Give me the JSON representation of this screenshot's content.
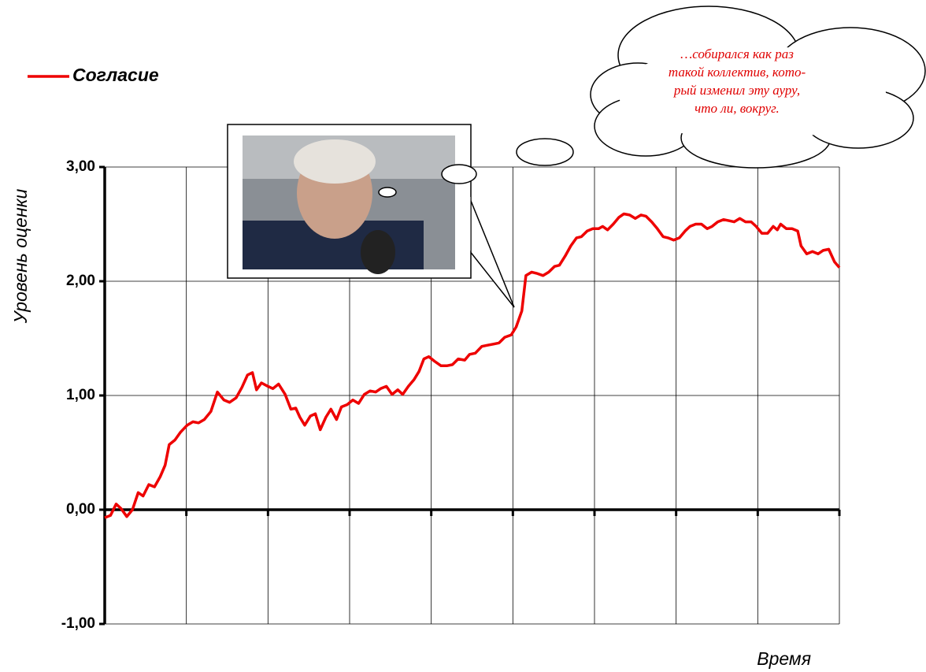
{
  "chart_data": {
    "type": "line",
    "y_axis_label": "Уровень оценки",
    "x_axis_label": "Время",
    "annotation": [
      "…собирался как раз",
      "такой коллектив, кото-",
      "рый изменил эту ауру,",
      "что ли, вокруг."
    ],
    "legend_position": "top-left",
    "grid": true,
    "xlim": [
      0,
      9
    ],
    "xticks": [
      0,
      1,
      2,
      3,
      4,
      5,
      6,
      7,
      8,
      9
    ],
    "ylim": [
      -1,
      3
    ],
    "yticks": [
      {
        "value": -1,
        "label": "-1,00"
      },
      {
        "value": 0,
        "label": "0,00"
      },
      {
        "value": 1,
        "label": "1,00"
      },
      {
        "value": 2,
        "label": "2,00"
      },
      {
        "value": 3,
        "label": "3,00"
      }
    ],
    "x": [
      0,
      0.07,
      0.14,
      0.2,
      0.27,
      0.34,
      0.41,
      0.47,
      0.54,
      0.61,
      0.68,
      0.74,
      0.79,
      0.86,
      0.93,
      1.01,
      1.08,
      1.15,
      1.22,
      1.3,
      1.38,
      1.46,
      1.53,
      1.61,
      1.68,
      1.75,
      1.81,
      1.86,
      1.92,
      2.0,
      2.06,
      2.13,
      2.21,
      2.28,
      2.34,
      2.39,
      2.45,
      2.52,
      2.58,
      2.64,
      2.71,
      2.77,
      2.84,
      2.9,
      2.97,
      3.04,
      3.11,
      3.18,
      3.25,
      3.32,
      3.38,
      3.45,
      3.52,
      3.59,
      3.65,
      3.72,
      3.79,
      3.85,
      3.91,
      3.97,
      4.04,
      4.12,
      4.19,
      4.26,
      4.33,
      4.41,
      4.47,
      4.54,
      4.62,
      4.69,
      4.76,
      4.83,
      4.9,
      4.98,
      5.04,
      5.11,
      5.16,
      5.23,
      5.29,
      5.37,
      5.44,
      5.51,
      5.57,
      5.64,
      5.71,
      5.78,
      5.84,
      5.91,
      5.98,
      6.05,
      6.1,
      6.16,
      6.23,
      6.3,
      6.36,
      6.43,
      6.5,
      6.57,
      6.63,
      6.7,
      6.77,
      6.84,
      6.9,
      6.97,
      7.04,
      7.11,
      7.17,
      7.24,
      7.31,
      7.38,
      7.44,
      7.51,
      7.58,
      7.65,
      7.71,
      7.78,
      7.85,
      7.92,
      7.98,
      8.05,
      8.12,
      8.19,
      8.24,
      8.28,
      8.35,
      8.42,
      8.49,
      8.53,
      8.6,
      8.67,
      8.74,
      8.8,
      8.87,
      8.94,
      9.0
    ],
    "series": [
      {
        "name": "Согласие",
        "color": "#ee0000",
        "values": [
          -0.07,
          -0.05,
          0.05,
          0.01,
          -0.06,
          0,
          0.15,
          0.12,
          0.22,
          0.2,
          0.29,
          0.39,
          0.57,
          0.61,
          0.68,
          0.74,
          0.77,
          0.76,
          0.79,
          0.86,
          1.03,
          0.96,
          0.94,
          0.98,
          1.07,
          1.18,
          1.2,
          1.05,
          1.11,
          1.08,
          1.06,
          1.1,
          1.01,
          0.88,
          0.89,
          0.81,
          0.74,
          0.82,
          0.84,
          0.7,
          0.81,
          0.88,
          0.79,
          0.9,
          0.92,
          0.96,
          0.93,
          1.01,
          1.04,
          1.03,
          1.06,
          1.08,
          1.01,
          1.05,
          1.01,
          1.08,
          1.14,
          1.21,
          1.32,
          1.34,
          1.3,
          1.26,
          1.26,
          1.27,
          1.32,
          1.31,
          1.36,
          1.37,
          1.43,
          1.44,
          1.45,
          1.46,
          1.51,
          1.53,
          1.6,
          1.74,
          2.05,
          2.08,
          2.07,
          2.05,
          2.08,
          2.13,
          2.14,
          2.22,
          2.31,
          2.38,
          2.39,
          2.44,
          2.46,
          2.46,
          2.48,
          2.45,
          2.5,
          2.56,
          2.59,
          2.58,
          2.55,
          2.58,
          2.57,
          2.52,
          2.46,
          2.39,
          2.38,
          2.36,
          2.38,
          2.44,
          2.48,
          2.5,
          2.5,
          2.46,
          2.48,
          2.52,
          2.54,
          2.53,
          2.52,
          2.55,
          2.52,
          2.52,
          2.48,
          2.42,
          2.42,
          2.48,
          2.45,
          2.5,
          2.46,
          2.46,
          2.44,
          2.31,
          2.24,
          2.26,
          2.24,
          2.27,
          2.28,
          2.17,
          2.12
        ]
      }
    ]
  }
}
